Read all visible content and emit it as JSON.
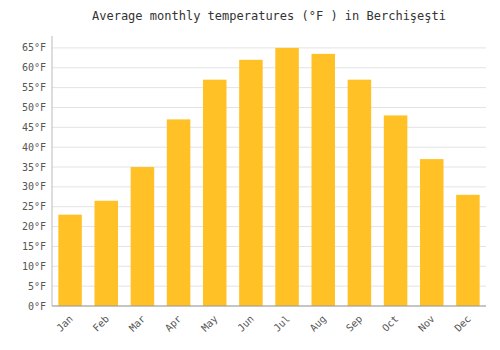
{
  "chart_data": {
    "type": "bar",
    "title": "Average monthly temperatures (°F ) in Berchişeşti",
    "categories": [
      "Jan",
      "Feb",
      "Mar",
      "Apr",
      "May",
      "Jun",
      "Jul",
      "Aug",
      "Sep",
      "Oct",
      "Nov",
      "Dec"
    ],
    "values": [
      23,
      26.5,
      35,
      47,
      57,
      62,
      65,
      63.5,
      57,
      48,
      37,
      28
    ],
    "color": "#FFC125",
    "ylim": [
      0,
      68
    ],
    "yticks": [
      {
        "value": 0,
        "label": "0°F"
      },
      {
        "value": 5,
        "label": "5°F"
      },
      {
        "value": 10,
        "label": "10°F"
      },
      {
        "value": 15,
        "label": "15°F"
      },
      {
        "value": 20,
        "label": "20°F"
      },
      {
        "value": 25,
        "label": "25°F"
      },
      {
        "value": 30,
        "label": "30°F"
      },
      {
        "value": 35,
        "label": "35°F"
      },
      {
        "value": 40,
        "label": "40°F"
      },
      {
        "value": 45,
        "label": "45°F"
      },
      {
        "value": 50,
        "label": "50°F"
      },
      {
        "value": 55,
        "label": "55°F"
      },
      {
        "value": 60,
        "label": "60°F"
      },
      {
        "value": 65,
        "label": "65°F"
      }
    ],
    "grid": true
  }
}
